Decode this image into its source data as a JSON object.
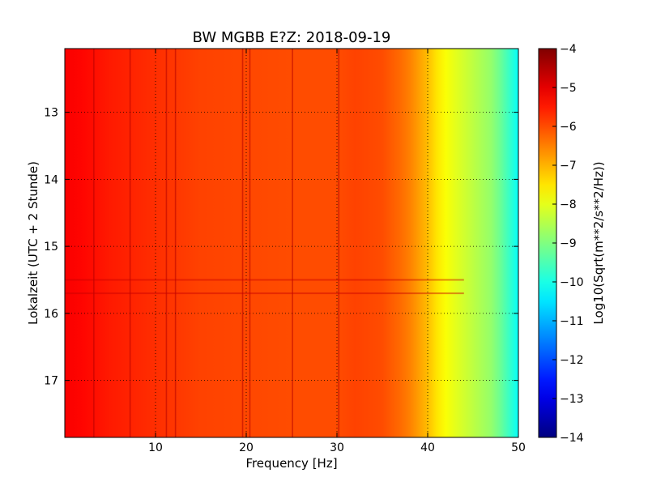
{
  "chart_data": {
    "type": "heatmap",
    "title": "BW MGBB E?Z: 2018-09-19",
    "xlabel": "Frequency [Hz]",
    "ylabel": "Lokalzeit (UTC + 2 Stunde)",
    "xlim": [
      0,
      50
    ],
    "ylim": [
      17.85,
      12.05
    ],
    "x_ticks": [
      10,
      20,
      30,
      40,
      50
    ],
    "x_tick_labels": [
      "10",
      "20",
      "30",
      "40",
      "50"
    ],
    "y_ticks": [
      13,
      14,
      15,
      16,
      17
    ],
    "y_tick_labels": [
      "13",
      "14",
      "15",
      "16",
      "17"
    ],
    "y_axis_inverted": true,
    "grid": true,
    "colormap": "jet",
    "colorbar": {
      "label": "Log10(Sqrt(m**2/s**2/Hz))",
      "range": [
        -14,
        -4
      ],
      "ticks": [
        -4,
        -5,
        -6,
        -7,
        -8,
        -9,
        -10,
        -11,
        -12,
        -13,
        -14
      ],
      "tick_labels": [
        "−4",
        "−5",
        "−6",
        "−7",
        "−8",
        "−9",
        "−10",
        "−11",
        "−12",
        "−13",
        "−14"
      ]
    },
    "frequency_profile": {
      "frequency_hz": [
        0,
        2,
        5,
        10,
        15,
        20,
        25,
        30,
        32,
        35,
        37,
        38,
        39,
        40,
        41,
        42,
        43,
        44,
        45,
        46,
        47,
        48,
        49,
        50
      ],
      "value": [
        -5.2,
        -5.3,
        -5.5,
        -5.7,
        -5.9,
        -5.95,
        -6.0,
        -6.0,
        -5.9,
        -6.0,
        -6.3,
        -6.5,
        -6.8,
        -7.1,
        -7.5,
        -7.8,
        -8.0,
        -8.2,
        -8.4,
        -8.6,
        -8.8,
        -9.2,
        -9.7,
        -10.2
      ]
    },
    "spectral_lines_hz": [
      3.2,
      7.2,
      11.2,
      12.2,
      19.6,
      20.4,
      25.1,
      30.2
    ],
    "horizontal_bands_hour": [
      15.5,
      15.7
    ]
  }
}
